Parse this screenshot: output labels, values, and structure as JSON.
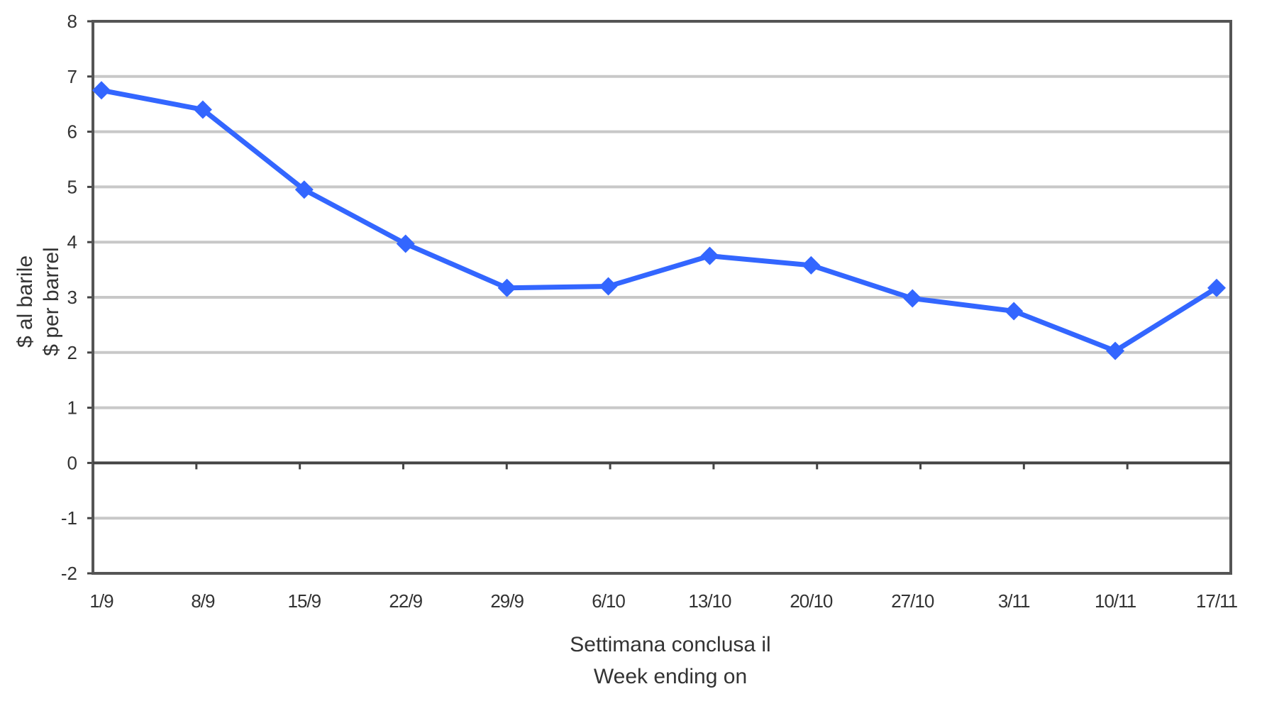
{
  "chart_data": {
    "type": "line",
    "title": "",
    "ylabel": [
      "$ al barile",
      "$ per barrel"
    ],
    "xlabel": [
      "Settimana conclusa il",
      "Week ending on"
    ],
    "categories": [
      "1/9",
      "8/9",
      "15/9",
      "22/9",
      "29/9",
      "6/10",
      "13/10",
      "20/10",
      "27/10",
      "3/11",
      "10/11",
      "17/11"
    ],
    "series": [
      {
        "values": [
          6.75,
          6.4,
          4.95,
          3.97,
          3.17,
          3.2,
          3.75,
          3.58,
          2.98,
          2.75,
          2.03,
          3.17
        ],
        "color": "#3366ff",
        "marker": "diamond"
      }
    ],
    "ylim": [
      -2,
      8
    ],
    "yticks": [
      8,
      7,
      6,
      5,
      4,
      3,
      2,
      1,
      0,
      -1,
      -2
    ],
    "grid": true,
    "legend": "none"
  }
}
